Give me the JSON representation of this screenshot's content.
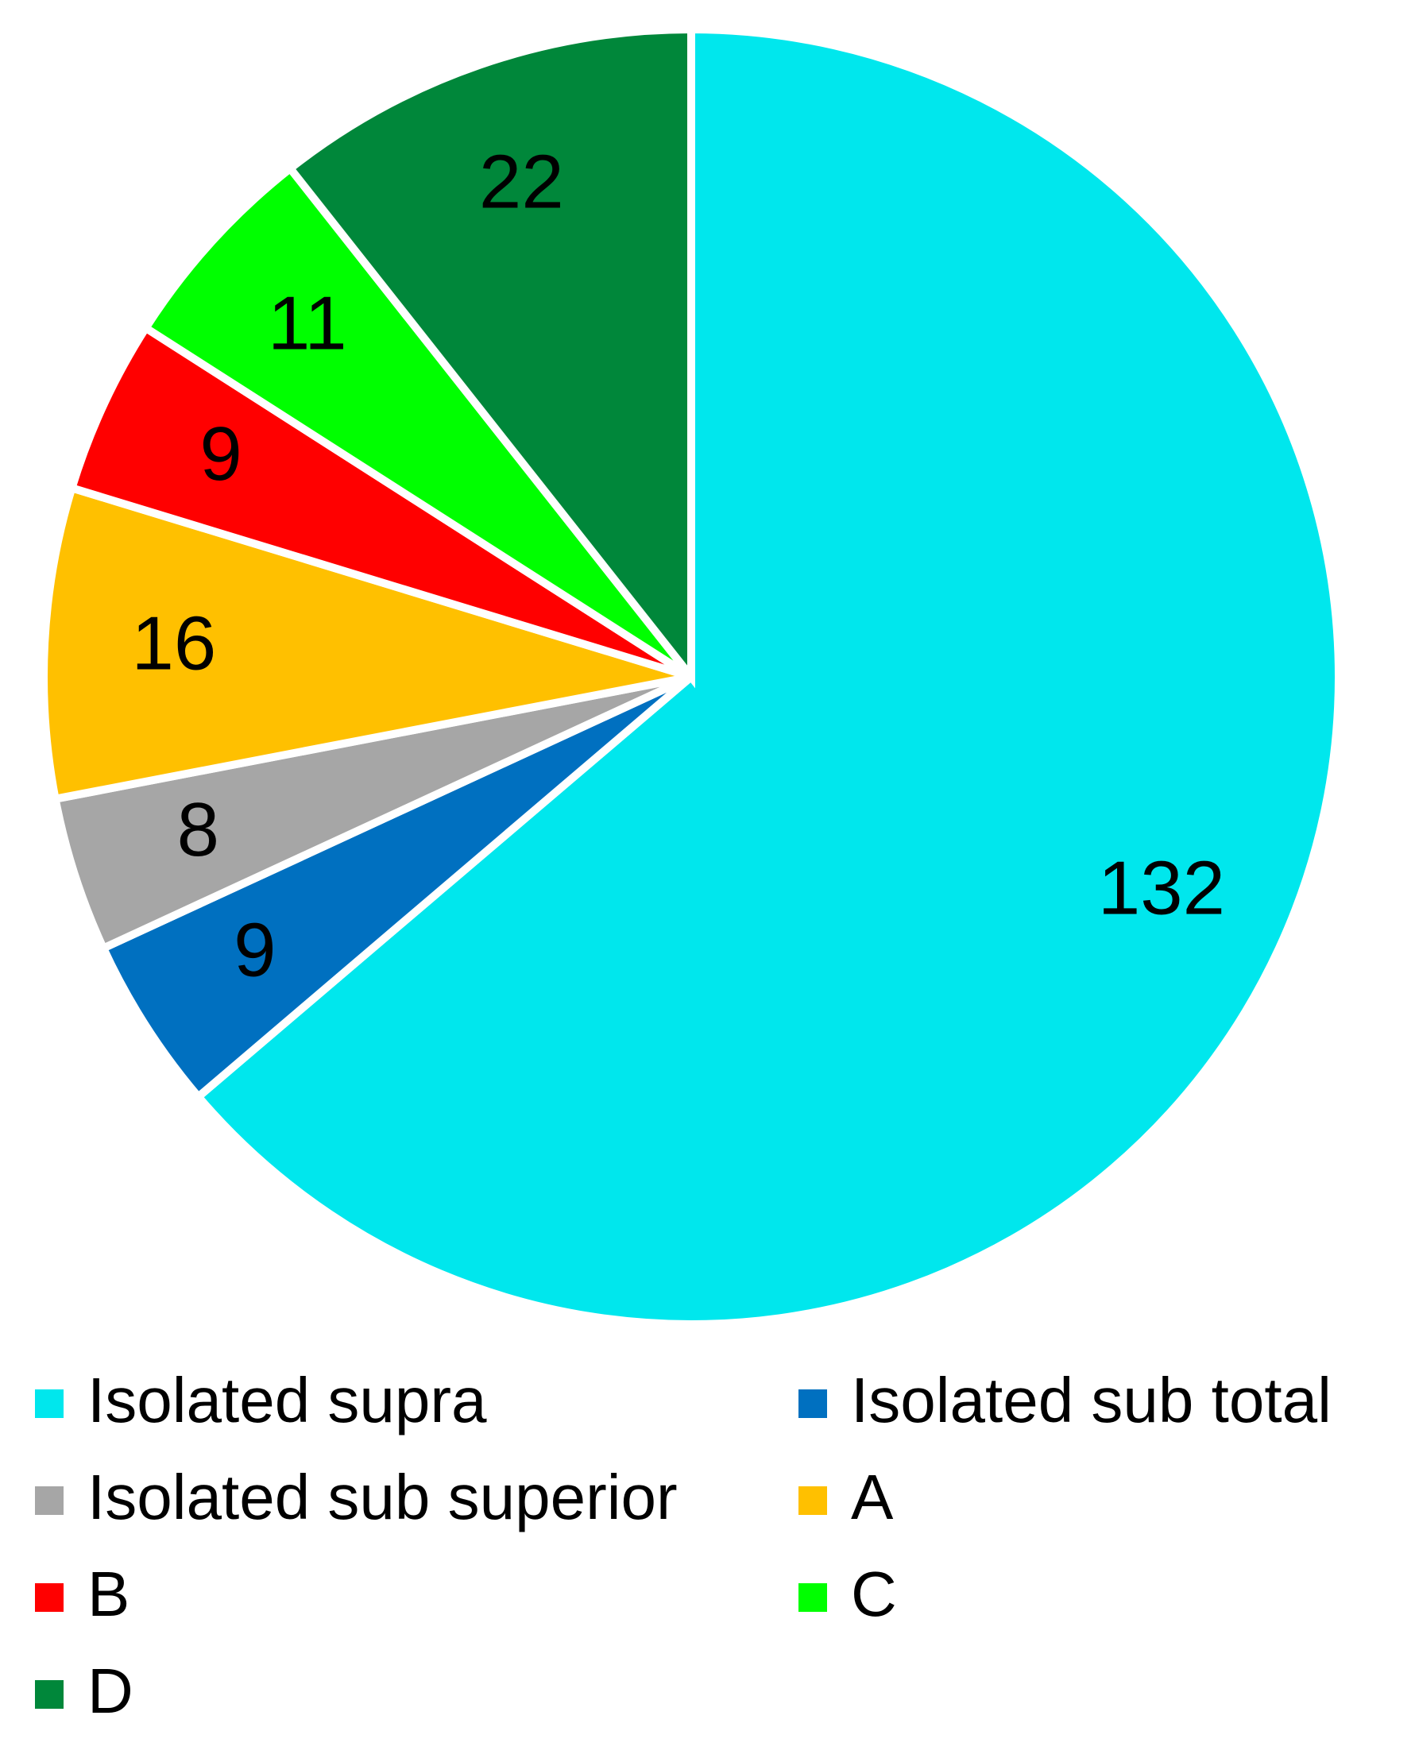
{
  "chart_data": {
    "type": "pie",
    "categories": [
      "Isolated supra",
      "Isolated sub total",
      "Isolated sub superior",
      "A",
      "B",
      "C",
      "D"
    ],
    "values": [
      132,
      9,
      8,
      16,
      9,
      11,
      22
    ],
    "colors": [
      "#00e7ed",
      "#0070c0",
      "#a6a6a6",
      "#ffc000",
      "#ff0000",
      "#00ff00",
      "#00873a"
    ],
    "legend": "bottom"
  }
}
